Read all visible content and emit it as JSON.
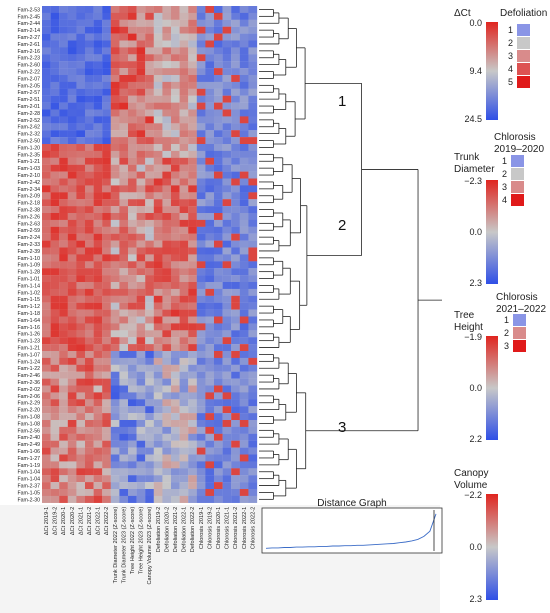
{
  "chart_data": {
    "type": "heatmap",
    "rows": [
      "Fam-2-53",
      "Fam-2-45",
      "Fam-2-44",
      "Fam-2-14",
      "Fam-2-27",
      "Fam-2-61",
      "Fam-2-16",
      "Fam-2-23",
      "Fam-2-60",
      "Fam-2-22",
      "Fam-2-07",
      "Fam-2-05",
      "Fam-2-57",
      "Fam-2-51",
      "Fam-2-01",
      "Fam-2-28",
      "Fam-2-52",
      "Fam-2-62",
      "Fam-2-32",
      "Fam-2-50",
      "Fam-1-20",
      "Fam-2-35",
      "Fam-1-21",
      "Fam-1-03",
      "Fam-2-10",
      "Fam-2-42",
      "Fam-2-34",
      "Fam-2-09",
      "Fam-2-18",
      "Fam-2-38",
      "Fam-2-26",
      "Fam-2-63",
      "Fam-2-59",
      "Fam-2-24",
      "Fam-2-33",
      "Fam-2-39",
      "Fam-1-10",
      "Fam-1-09",
      "Fam-1-28",
      "Fam-1-01",
      "Fam-1-14",
      "Fam-1-02",
      "Fam-1-15",
      "Fam-1-12",
      "Fam-1-18",
      "Fam-1-64",
      "Fam-1-16",
      "Fam-1-26",
      "Fam-1-23",
      "Fam-1-21",
      "Fam-1-07",
      "Fam-1-24",
      "Fam-1-22",
      "Fam-2-46",
      "Fam-2-36",
      "Fam-2-02",
      "Fam-2-06",
      "Fam-2-29",
      "Fam-2-20",
      "Fam-1-08",
      "Fam-1-08",
      "Fam-2-56",
      "Fam-2-40",
      "Fam-2-49",
      "Fam-1-06",
      "Fam-1-27",
      "Fam-1-19",
      "Fam-1-04",
      "Fam-1-04",
      "Fam-2-37",
      "Fam-1-05",
      "Fam-2-30"
    ],
    "highlighted_rows": [
      "Fam-2-07",
      "Fam-2-05"
    ],
    "columns": [
      "ΔCt 2019-1",
      "ΔCt 2019-2",
      "ΔCt 2020-1",
      "ΔCt 2020-2",
      "ΔCt 2021-1",
      "ΔCt 2021-2",
      "ΔCt 2022-1",
      "ΔCt 2022-2",
      "Trunk Diameter 2022 (Z-score)",
      "Trunk Diameter 2023 (Z-score)",
      "Tree Height 2022 (Z-score)",
      "Tree Height 2023 (Z-score)",
      "Canopy Volume 2023 (Z-score)",
      "Defoliation 2019-2",
      "Defoliation 2020-2",
      "Defoliation 2021-2",
      "Defoliation 2022-1",
      "Defoliation 2022-2",
      "Chlorosis 2019-1",
      "Chlorosis 2019-2",
      "Chlorosis 2020-1",
      "Chlorosis 2021-1",
      "Chlorosis 2021-2",
      "Chlorosis 2022-1",
      "Chlorosis 2022-2"
    ],
    "clusters": [
      {
        "label": "1",
        "rows_from": "Fam-2-53",
        "rows_to": "Fam-1-20"
      },
      {
        "label": "2",
        "rows_from": "Fam-2-35",
        "rows_to": "Fam-1-21"
      },
      {
        "label": "3",
        "rows_from": "Fam-1-07",
        "rows_to": "Fam-2-30"
      }
    ],
    "inset": {
      "title": "Distance Graph",
      "type": "line",
      "description_values": [
        0.02,
        0.03,
        0.03,
        0.04,
        0.04,
        0.05,
        0.05,
        0.06,
        0.06,
        0.07,
        0.07,
        0.08,
        0.08,
        0.09,
        0.09,
        0.1,
        0.1,
        0.11,
        0.12,
        0.13,
        0.14,
        0.15,
        0.17,
        0.19,
        0.22,
        0.26,
        0.34,
        0.48,
        0.95
      ]
    },
    "legends": [
      {
        "title": "ΔCt",
        "type": "continuous",
        "ticks": [
          "0.0",
          "9.4",
          "24.5"
        ],
        "colors": [
          "#e0251f",
          "#c8c8c8",
          "#2f4fe6"
        ]
      },
      {
        "title": "Trunk Diameter",
        "type": "continuous",
        "ticks": [
          "−2.3",
          "0.0",
          "2.3"
        ],
        "colors": [
          "#e0251f",
          "#c8c8c8",
          "#2f4fe6"
        ]
      },
      {
        "title": "Tree Height",
        "type": "continuous",
        "ticks": [
          "−1.9",
          "0.0",
          "2.2"
        ],
        "colors": [
          "#e0251f",
          "#c8c8c8",
          "#2f4fe6"
        ]
      },
      {
        "title": "Canopy Volume",
        "type": "continuous",
        "ticks": [
          "−2.2",
          "0.0",
          "2.3"
        ],
        "colors": [
          "#e0251f",
          "#c8c8c8",
          "#2f4fe6"
        ]
      },
      {
        "title": "Defoliation",
        "type": "categorical",
        "levels": [
          "1",
          "2",
          "3",
          "4",
          "5"
        ],
        "colors": [
          "#8a95e6",
          "#c8c8c8",
          "#d98b8b",
          "#dd5252",
          "#e01a1a"
        ]
      },
      {
        "title": "Chlorosis 2019–2020",
        "type": "categorical",
        "levels": [
          "1",
          "2",
          "3",
          "4"
        ],
        "colors": [
          "#8a95e6",
          "#c8c8c8",
          "#d98b8b",
          "#e01a1a"
        ]
      },
      {
        "title": "Chlorosis 2021–2022",
        "type": "categorical",
        "levels": [
          "1",
          "2",
          "3"
        ],
        "colors": [
          "#8a95e6",
          "#d98b8b",
          "#e01a1a"
        ]
      }
    ]
  },
  "colors": {
    "red": "#e0251f",
    "grey": "#c8c8c8",
    "blue": "#2f4fe6",
    "highlight_label": "#c2185b"
  }
}
